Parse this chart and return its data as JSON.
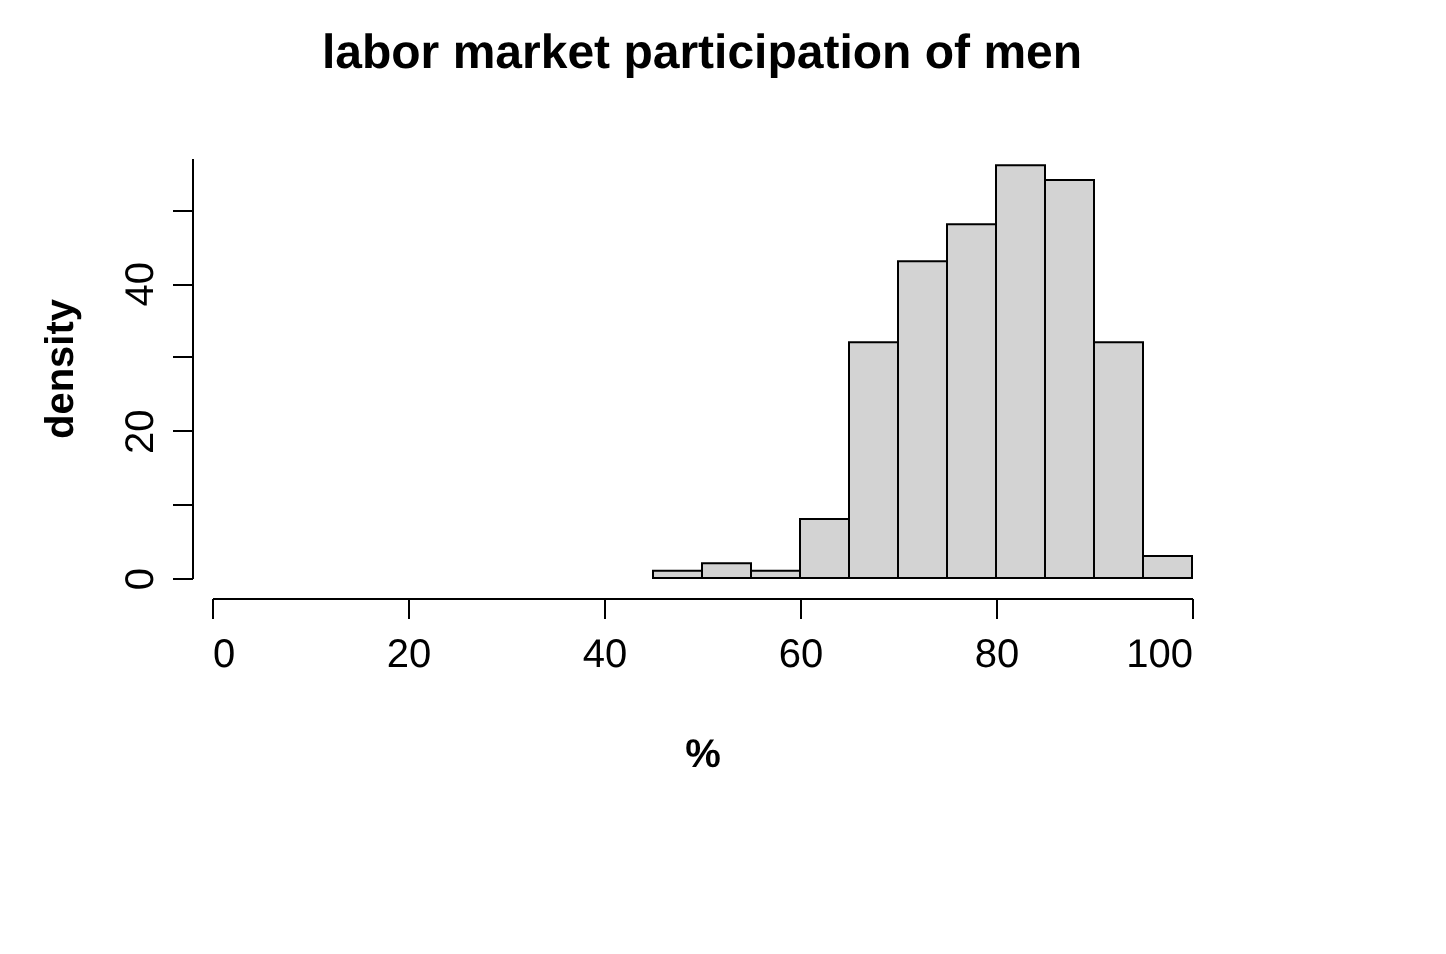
{
  "chart_data": {
    "type": "histogram",
    "title": "labor market participation of men",
    "xlabel": "%",
    "ylabel": "density",
    "bins": [
      45,
      50,
      55,
      60,
      65,
      70,
      75,
      80,
      85,
      90,
      95,
      100
    ],
    "values": [
      1,
      2,
      1,
      8,
      32,
      43,
      48,
      56,
      54,
      32,
      3
    ],
    "color": "#d3d3d3",
    "xlim": [
      0,
      100
    ],
    "xticks": [
      0,
      20,
      40,
      60,
      80,
      100
    ],
    "ylim": [
      0,
      57
    ],
    "yticks": [
      0,
      {
        "value": 10,
        "label": null
      },
      20,
      {
        "value": 30,
        "label": null
      },
      40,
      {
        "value": 50,
        "label": null
      }
    ],
    "grid": false
  }
}
